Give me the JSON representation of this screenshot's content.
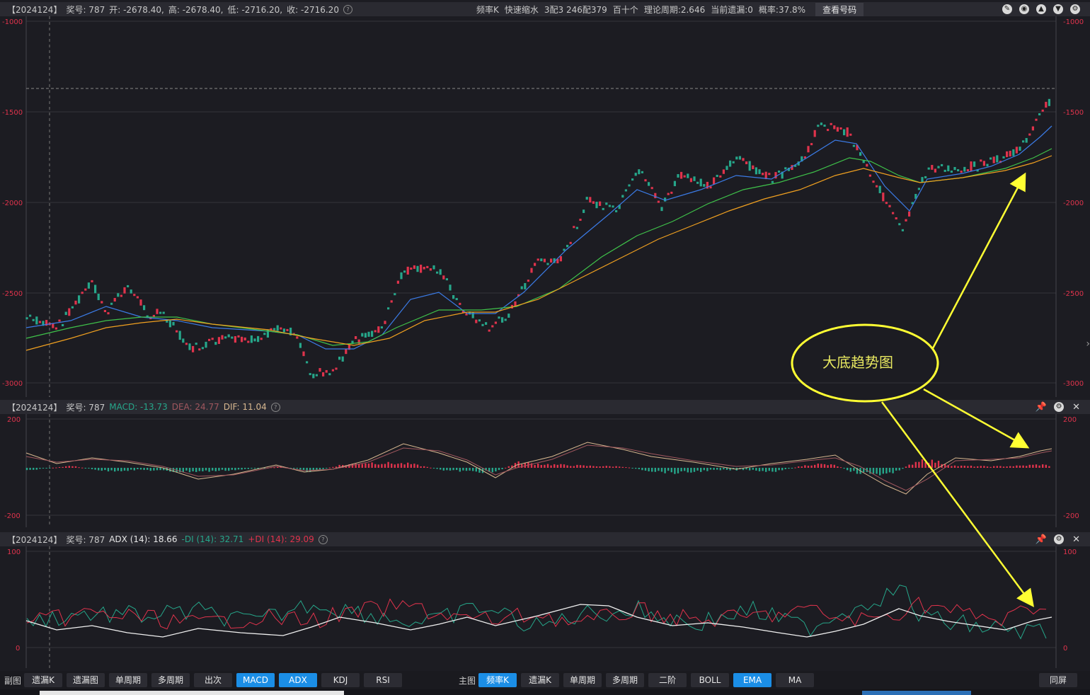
{
  "main_panel": {
    "issue": "【2024124】",
    "lottery_label": "奖号: 787",
    "open": "开: -2678.40,",
    "high": "高: -2678.40,",
    "low": "低: -2716.20,",
    "close": "收: -2716.20",
    "stats": [
      "频率K",
      "快速缩水",
      "3配3 246配379",
      "百十个",
      "理论周期:2.646",
      "当前遗漏:0",
      "概率:37.8%"
    ],
    "check_button": "查看号码",
    "y_ticks": [
      "-1000",
      "-1500",
      "-2000",
      "-2500",
      "-3000"
    ],
    "annotation": "大底趋势图"
  },
  "macd_panel": {
    "issue": "【2024124】",
    "lottery_label": "奖号: 787",
    "macd": "MACD: -13.73",
    "dea": "DEA: 24.77",
    "dif": "DIF: 11.04",
    "y_ticks": [
      "200",
      "-200"
    ]
  },
  "adx_panel": {
    "issue": "【2024124】",
    "lottery_label": "奖号: 787",
    "adx": "ADX (14): 18.66",
    "minus_di": "-DI (14): 32.71",
    "plus_di": "+DI (14): 29.09",
    "y_ticks": [
      "100",
      "0"
    ]
  },
  "bottom_bar": {
    "sub_label": "副图",
    "sub_buttons": [
      "遗漏K",
      "遗漏图",
      "单周期",
      "多周期",
      "出次",
      "MACD",
      "ADX",
      "KDJ",
      "RSI"
    ],
    "main_label": "主图",
    "main_buttons": [
      "频率K",
      "遗漏K",
      "单周期",
      "多周期",
      "二阶",
      "BOLL",
      "EMA",
      "MA"
    ],
    "right_button": "同屏"
  },
  "colors": {
    "up": "#e0334c",
    "down": "#26a68a",
    "ema_fast": "#3b7be6",
    "ema_mid": "#3fc24a",
    "ema_slow": "#f0a020",
    "annotation": "#ffff33",
    "active_button": "#1b8ee6"
  }
}
